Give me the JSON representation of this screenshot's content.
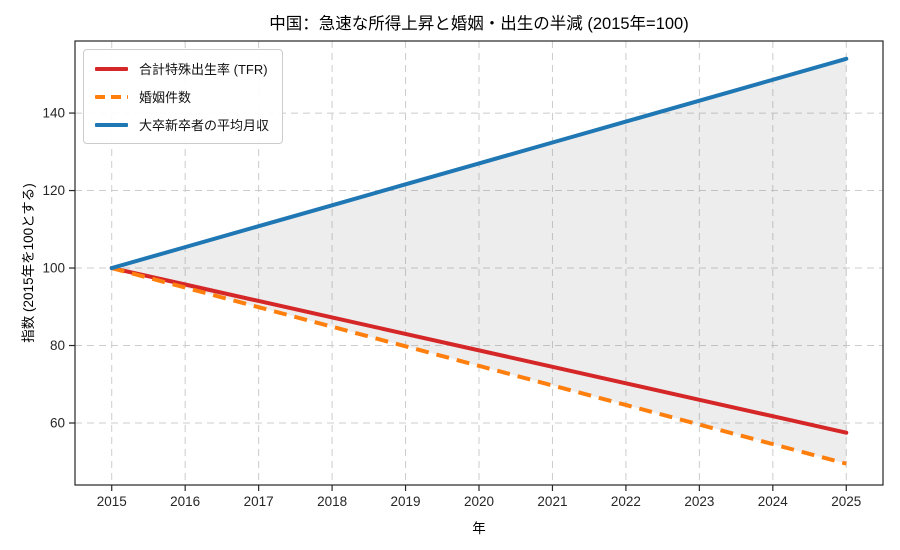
{
  "chart_data": {
    "type": "line",
    "title": "中国：急速な所得上昇と婚姻・出生の半減 (2015年=100)",
    "xlabel": "年",
    "ylabel": "指数 (2015年を100とする)",
    "x": [
      2015,
      2016,
      2017,
      2018,
      2019,
      2020,
      2021,
      2022,
      2023,
      2024,
      2025
    ],
    "series": [
      {
        "id": "tfr",
        "name": "合計特殊出生率 (TFR)",
        "color": "#d62728",
        "style": "solid",
        "values": [
          100,
          95.75,
          91.5,
          87.25,
          83,
          78.75,
          74.5,
          70.25,
          66,
          61.75,
          57.5
        ]
      },
      {
        "id": "marriages",
        "name": "婚姻件数",
        "color": "#ff7f0e",
        "style": "dashed",
        "values": [
          100,
          94.95,
          89.9,
          84.85,
          79.8,
          74.75,
          69.7,
          64.65,
          59.6,
          54.55,
          49.5
        ]
      },
      {
        "id": "income",
        "name": "大卒新卒者の平均月収",
        "color": "#1f77b4",
        "style": "solid",
        "values": [
          100,
          105.4,
          110.8,
          116.2,
          121.6,
          127,
          132.4,
          137.8,
          143.2,
          148.6,
          154
        ]
      }
    ],
    "fill_between": {
      "upper_series": "大卒新卒者の平均月収",
      "lower_series": "婚姻件数",
      "color": "rgba(128,128,128,0.14)"
    },
    "xticks": [
      2015,
      2016,
      2017,
      2018,
      2019,
      2020,
      2021,
      2022,
      2023,
      2024,
      2025
    ],
    "yticks": [
      60,
      80,
      100,
      120,
      140
    ],
    "xlim": [
      2014.5,
      2025.5
    ],
    "ylim": [
      44,
      158.6
    ],
    "grid": true,
    "grid_style": "dashed",
    "grid_color": "#cccccc",
    "spine_color": "#262626",
    "tick_label_color": "#262626",
    "legend_position": "upper-left"
  }
}
